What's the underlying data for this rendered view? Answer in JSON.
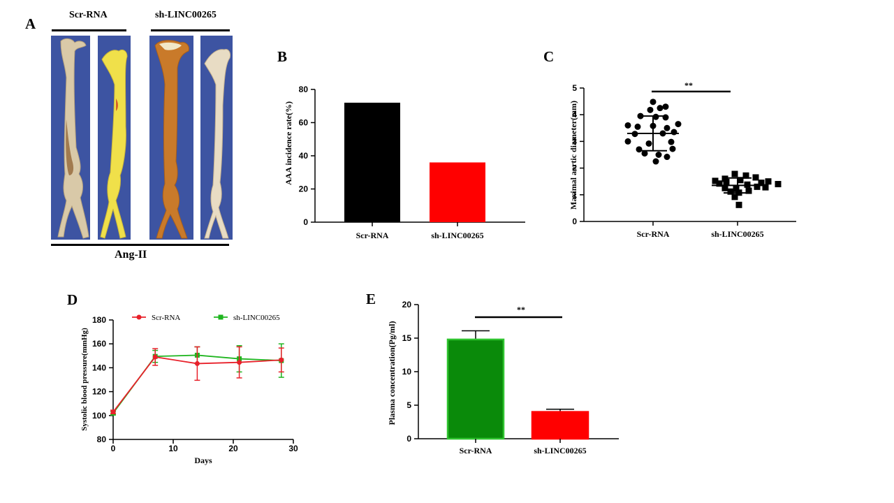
{
  "panel_letters": {
    "a": "A",
    "b": "B",
    "c": "C",
    "d": "D",
    "e": "E"
  },
  "panel_a": {
    "group_labels": [
      "Scr-RNA",
      "sh-LINC00265"
    ],
    "treatment_label": "Ang-II",
    "photo_bg_color": "#3d54a2"
  },
  "chart_data": [
    {
      "id": "B",
      "type": "bar",
      "categories": [
        "Scr-RNA",
        "sh-LINC00265"
      ],
      "values": [
        72,
        36
      ],
      "colors": [
        "#000000",
        "#ff0000"
      ],
      "ylabel": "AAA incidence rate(%)",
      "xlabel": "",
      "ylim": [
        0,
        80
      ],
      "yticks": [
        0,
        20,
        40,
        60,
        80
      ]
    },
    {
      "id": "C",
      "type": "scatter",
      "categories": [
        "Scr-RNA",
        "sh-LINC00265"
      ],
      "ylabel": "Maximal aortic diameter(mm)",
      "ylim": [
        0,
        5
      ],
      "yticks": [
        0,
        1,
        2,
        3,
        4,
        5
      ],
      "significance": "**",
      "series": [
        {
          "name": "Scr-RNA",
          "marker": "circle",
          "mean": 3.3,
          "sd": 0.65,
          "values": [
            4.48,
            4.25,
            4.18,
            4.3,
            3.95,
            3.92,
            3.9,
            3.6,
            3.58,
            3.65,
            3.5,
            3.55,
            3.28,
            3.35,
            3.3,
            3.0,
            2.92,
            2.98,
            2.72,
            2.7,
            2.55,
            2.5,
            2.42,
            2.25
          ]
        },
        {
          "name": "sh-LINC00265",
          "marker": "square",
          "mean": 1.35,
          "sd": 0.28,
          "values": [
            1.78,
            1.72,
            1.65,
            1.6,
            1.55,
            1.52,
            1.5,
            1.48,
            1.45,
            1.42,
            1.4,
            1.38,
            1.3,
            1.28,
            1.25,
            1.22,
            1.15,
            1.12,
            1.08,
            0.92,
            0.62
          ]
        }
      ]
    },
    {
      "id": "D",
      "type": "line",
      "x": [
        0,
        7,
        14,
        21,
        28
      ],
      "xlabel": "Days",
      "ylabel": "Systolic blood pressure(mmHg)",
      "xlim": [
        0,
        30
      ],
      "ylim": [
        80,
        180
      ],
      "xticks": [
        0,
        10,
        20,
        30
      ],
      "yticks": [
        80,
        100,
        120,
        140,
        160,
        180
      ],
      "series": [
        {
          "name": "Scr-RNA",
          "color": "#e8202a",
          "marker": "circle",
          "values": [
            103,
            149,
            143.5,
            144.5,
            146.5
          ],
          "errors": [
            1.5,
            7,
            14,
            13,
            10
          ]
        },
        {
          "name": "sh-LINC00265",
          "color": "#1fb51f",
          "marker": "square",
          "values": [
            102,
            149.5,
            150.5,
            147.5,
            146
          ],
          "errors": [
            1.5,
            5,
            7,
            11,
            14
          ]
        }
      ]
    },
    {
      "id": "E",
      "type": "bar",
      "categories": [
        "Scr-RNA",
        "sh-LINC00265"
      ],
      "values": [
        14.8,
        4.0
      ],
      "errors": [
        1.3,
        0.4
      ],
      "colors": [
        "#0a8a0a",
        "#ff0000"
      ],
      "edge_colors": [
        "#2fc42f",
        "#ff0000"
      ],
      "ylabel": "Plasma concentration(Pg/ml)",
      "ylim": [
        0,
        20
      ],
      "yticks": [
        0,
        5,
        10,
        15,
        20
      ],
      "significance": "**"
    }
  ]
}
